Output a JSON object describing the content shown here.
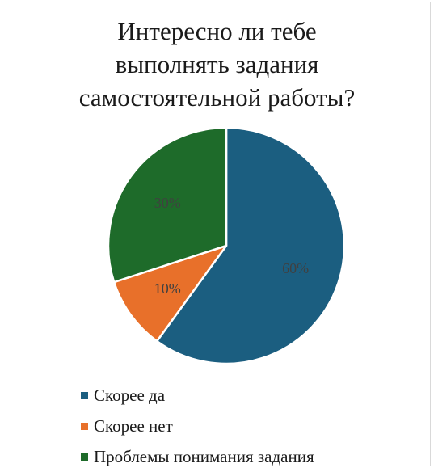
{
  "chart_data": {
    "type": "pie",
    "title_lines": [
      "Интересно ли тебе",
      "выполнять задания",
      "самостоятельной работы?"
    ],
    "slices": [
      {
        "label": "Скорее да",
        "value": 60,
        "data_label": "60%",
        "color": "#1b5e80"
      },
      {
        "label": "Скорее нет",
        "value": 10,
        "data_label": "10%",
        "color": "#e8702a"
      },
      {
        "label": "Проблемы понимания задания",
        "value": 30,
        "data_label": "30%",
        "color": "#1e6b2a"
      }
    ],
    "start_angle_deg": 0,
    "direction": "clockwise",
    "legend_position": "bottom-left",
    "data_label_color": "#404040"
  }
}
